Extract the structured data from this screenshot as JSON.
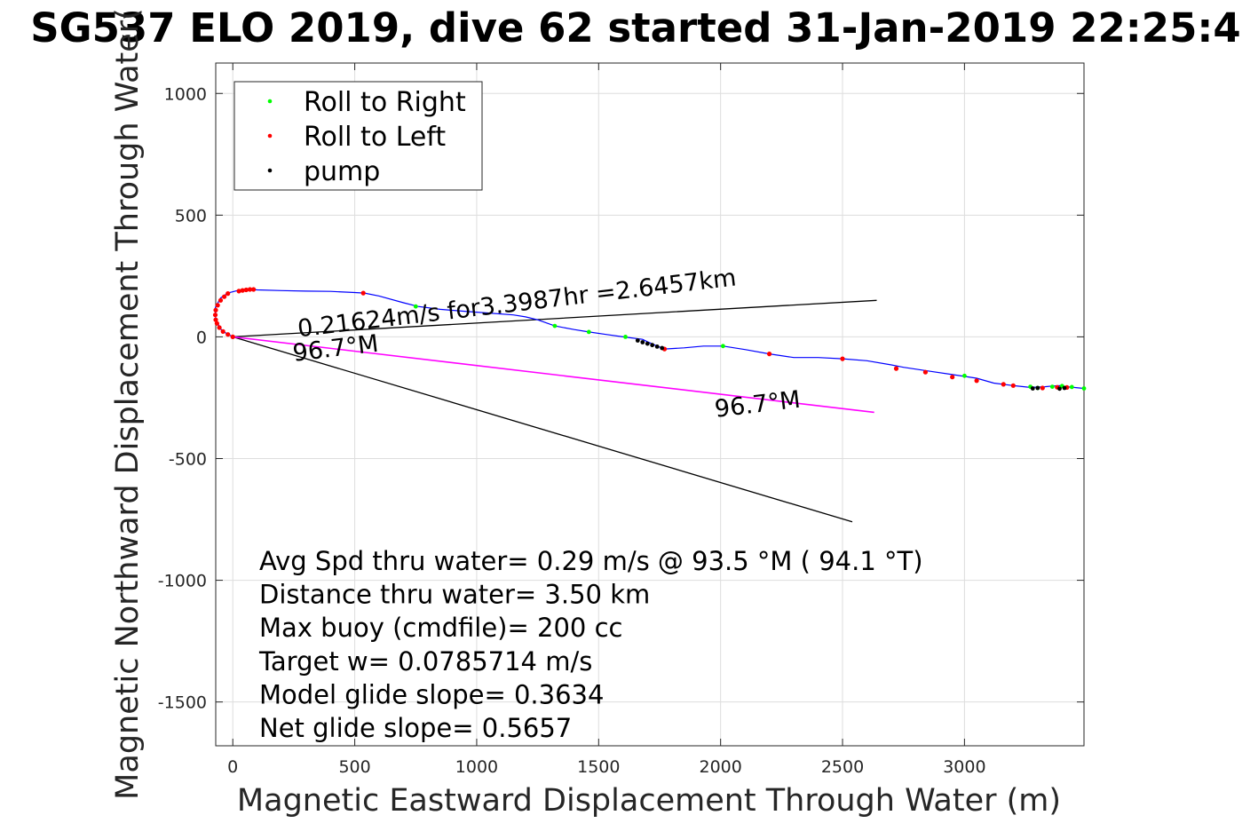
{
  "chart_data": {
    "type": "line",
    "title": "SG537 ELO 2019, dive 62 started 31-Jan-2019 22:25:4",
    "xlabel": "Magnetic Eastward Displacement Through Water (m)",
    "ylabel": "Magnetic Northward Displacement Through Water(",
    "xlim": [
      -70,
      3490
    ],
    "ylim": [
      -1680,
      1125
    ],
    "xticks": [
      0,
      500,
      1000,
      1500,
      2000,
      2500,
      3000
    ],
    "yticks": [
      -1500,
      -1000,
      -500,
      0,
      500,
      1000
    ],
    "xtick_labels": [
      "0",
      "500",
      "1000",
      "1500",
      "2000",
      "2500",
      "3000"
    ],
    "ytick_labels": [
      "-1500",
      "-1000",
      "-500",
      "0",
      "500",
      "1000"
    ],
    "grid": true,
    "legend_position": "top-left",
    "legend": [
      {
        "label": "Roll to Right",
        "color": "#00ff00"
      },
      {
        "label": "Roll to Left",
        "color": "#ff0000"
      },
      {
        "label": "pump",
        "color": "#000000"
      }
    ],
    "series": [
      {
        "role": "track",
        "color": "#0000ff",
        "points": [
          [
            0,
            0
          ],
          [
            -45,
            25
          ],
          [
            -70,
            70
          ],
          [
            -72,
            120
          ],
          [
            -50,
            160
          ],
          [
            -20,
            180
          ],
          [
            25,
            192
          ],
          [
            70,
            195
          ],
          [
            100,
            193
          ],
          [
            200,
            190
          ],
          [
            300,
            188
          ],
          [
            400,
            187
          ],
          [
            500,
            182
          ],
          [
            540,
            180
          ],
          [
            600,
            168
          ],
          [
            700,
            140
          ],
          [
            760,
            125
          ],
          [
            850,
            113
          ],
          [
            950,
            105
          ],
          [
            1050,
            98
          ],
          [
            1150,
            90
          ],
          [
            1200,
            82
          ],
          [
            1250,
            70
          ],
          [
            1320,
            45
          ],
          [
            1400,
            30
          ],
          [
            1460,
            20
          ],
          [
            1530,
            10
          ],
          [
            1600,
            0
          ],
          [
            1680,
            -10
          ],
          [
            1700,
            -20
          ],
          [
            1740,
            -38
          ],
          [
            1770,
            -50
          ],
          [
            1850,
            -45
          ],
          [
            1930,
            -38
          ],
          [
            2010,
            -38
          ],
          [
            2100,
            -52
          ],
          [
            2200,
            -70
          ],
          [
            2300,
            -85
          ],
          [
            2400,
            -85
          ],
          [
            2500,
            -90
          ],
          [
            2600,
            -98
          ],
          [
            2700,
            -115
          ],
          [
            2750,
            -125
          ],
          [
            2850,
            -140
          ],
          [
            2950,
            -155
          ],
          [
            3050,
            -170
          ],
          [
            3120,
            -190
          ],
          [
            3200,
            -200
          ],
          [
            3270,
            -208
          ],
          [
            3330,
            -205
          ],
          [
            3360,
            -202
          ],
          [
            3390,
            -200
          ],
          [
            3420,
            -205
          ],
          [
            3490,
            -212
          ]
        ]
      },
      {
        "role": "roll-right",
        "color": "#00ff00",
        "points": [
          [
            750,
            125
          ],
          [
            1320,
            45
          ],
          [
            1460,
            20
          ],
          [
            1610,
            0
          ],
          [
            2010,
            -38
          ],
          [
            3000,
            -160
          ],
          [
            3270,
            -205
          ],
          [
            3300,
            -210
          ],
          [
            3360,
            -205
          ],
          [
            3400,
            -202
          ],
          [
            3440,
            -206
          ],
          [
            3490,
            -212
          ]
        ]
      },
      {
        "role": "roll-left",
        "color": "#ff0000",
        "points": [
          [
            0,
            0
          ],
          [
            -20,
            10
          ],
          [
            -40,
            22
          ],
          [
            -55,
            38
          ],
          [
            -65,
            55
          ],
          [
            -70,
            70
          ],
          [
            -72,
            90
          ],
          [
            -70,
            110
          ],
          [
            -62,
            130
          ],
          [
            -50,
            150
          ],
          [
            -35,
            165
          ],
          [
            -20,
            178
          ],
          [
            25,
            188
          ],
          [
            40,
            191
          ],
          [
            55,
            193
          ],
          [
            70,
            195
          ],
          [
            85,
            195
          ],
          [
            535,
            180
          ],
          [
            1770,
            -50
          ],
          [
            2200,
            -70
          ],
          [
            2500,
            -90
          ],
          [
            2720,
            -130
          ],
          [
            2840,
            -145
          ],
          [
            2950,
            -165
          ],
          [
            3050,
            -180
          ],
          [
            3160,
            -195
          ],
          [
            3200,
            -200
          ],
          [
            3320,
            -210
          ],
          [
            3380,
            -207
          ],
          [
            3420,
            -208
          ]
        ]
      },
      {
        "role": "pump",
        "color": "#000000",
        "points": [
          [
            1660,
            -15
          ],
          [
            1680,
            -22
          ],
          [
            1700,
            -28
          ],
          [
            1720,
            -34
          ],
          [
            1740,
            -40
          ],
          [
            1760,
            -46
          ],
          [
            3280,
            -212
          ],
          [
            3300,
            -210
          ],
          [
            3390,
            -213
          ],
          [
            3410,
            -210
          ]
        ]
      },
      {
        "role": "heading-line",
        "color": "#ff00ff",
        "points": [
          [
            0,
            0
          ],
          [
            2630,
            -310
          ]
        ]
      },
      {
        "role": "bounds",
        "color": "#000000",
        "points": [
          [
            2640,
            150
          ],
          [
            0,
            0
          ],
          [
            2540,
            -760
          ]
        ]
      }
    ],
    "annotations": [
      {
        "text": "0.21624m/s for3.3987hr =2.6457km",
        "x": 270,
        "y": 0,
        "angle": -6.72
      },
      {
        "text": "96.7°M",
        "x": 250,
        "y": -100,
        "angle": -6.72
      },
      {
        "text": "96.7°M",
        "x": 1980,
        "y": -330,
        "angle": -6.72
      }
    ],
    "stats": [
      "Avg Spd thru water=  0.29 m/s @  93.5 °M ( 94.1 °T)",
      "Distance thru water=  3.50 km",
      "Max buoy (cmdfile)= 200 cc",
      "Target w= 0.0785714 m/s",
      "Model glide slope= 0.3634",
      "Net glide slope= 0.5657"
    ]
  }
}
